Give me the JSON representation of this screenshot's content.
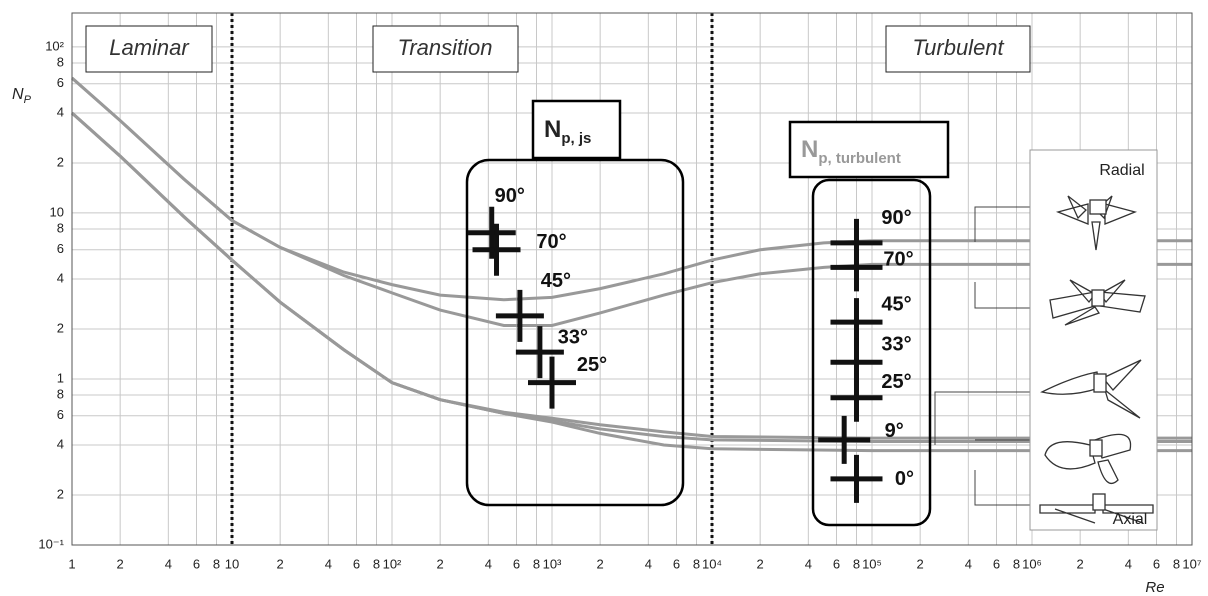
{
  "chart_data": {
    "type": "line",
    "x_label": "Re",
    "y_label": {
      "main": "N",
      "sub": "P"
    },
    "log_x": true,
    "log_y": true,
    "grid": true,
    "xlim": [
      1,
      10000000
    ],
    "ylim": [
      0.1,
      160
    ],
    "xticks": [
      1,
      2,
      4,
      6,
      8,
      10,
      {
        "value": 20,
        "label": "2"
      },
      {
        "value": 40,
        "label": "4"
      },
      {
        "value": 60,
        "label": "6"
      },
      {
        "value": 80,
        "label": "8"
      },
      {
        "value": 100,
        "label": "10²"
      },
      {
        "value": 200,
        "label": "2"
      },
      {
        "value": 400,
        "label": "4"
      },
      {
        "value": 600,
        "label": "6"
      },
      {
        "value": 800,
        "label": "8"
      },
      {
        "value": 1000,
        "label": "10³"
      },
      {
        "value": 2000,
        "label": "2"
      },
      {
        "value": 4000,
        "label": "4"
      },
      {
        "value": 6000,
        "label": "6"
      },
      {
        "value": 8000,
        "label": "8"
      },
      {
        "value": 10000,
        "label": "10⁴"
      },
      {
        "value": 20000,
        "label": "2"
      },
      {
        "value": 40000,
        "label": "4"
      },
      {
        "value": 60000,
        "label": "6"
      },
      {
        "value": 80000,
        "label": "8"
      },
      {
        "value": 100000,
        "label": "10⁵"
      },
      {
        "value": 200000,
        "label": "2"
      },
      {
        "value": 400000,
        "label": "4"
      },
      {
        "value": 600000,
        "label": "6"
      },
      {
        "value": 800000,
        "label": "8"
      },
      {
        "value": 1000000,
        "label": "10⁶"
      },
      {
        "value": 2000000,
        "label": "2"
      },
      {
        "value": 4000000,
        "label": "4"
      },
      {
        "value": 6000000,
        "label": "6"
      },
      {
        "value": 8000000,
        "label": "8"
      },
      {
        "value": 10000000,
        "label": "10⁷"
      }
    ],
    "yticks": [
      {
        "value": 0.1,
        "label": "10⁻¹"
      },
      {
        "value": 0.2,
        "label": "2"
      },
      {
        "value": 0.4,
        "label": "4"
      },
      {
        "value": 0.6,
        "label": "6"
      },
      {
        "value": 0.8,
        "label": "8"
      },
      1,
      2,
      4,
      6,
      8,
      10,
      {
        "value": 20,
        "label": "2"
      },
      {
        "value": 40,
        "label": "4"
      },
      {
        "value": 60,
        "label": "6"
      },
      {
        "value": 80,
        "label": "8"
      },
      {
        "value": 100,
        "label": "10²"
      }
    ],
    "regime_boundaries": [
      10,
      10000
    ],
    "regimes": [
      "Laminar",
      "Transition",
      "Turbulent"
    ],
    "curves": [
      {
        "color": "#999999",
        "x": [
          1,
          2,
          5,
          10,
          20,
          50,
          100,
          200,
          500,
          1000,
          2000,
          5000,
          10000,
          20000,
          50000,
          100000,
          1000000,
          10000000
        ],
        "values": [
          65,
          36,
          16,
          9,
          6.2,
          4.4,
          3.7,
          3.2,
          3.0,
          3.1,
          3.5,
          4.3,
          5.2,
          6.0,
          6.6,
          6.8,
          6.8,
          6.8
        ]
      },
      {
        "color": "#999999",
        "x": [
          1,
          2,
          5,
          10,
          20,
          50,
          100,
          200,
          500,
          1000,
          2000,
          5000,
          10000,
          20000,
          50000,
          100000,
          1000000,
          10000000
        ],
        "values": [
          65,
          36,
          16,
          9,
          6.2,
          4.2,
          3.3,
          2.6,
          2.1,
          2.1,
          2.5,
          3.2,
          3.8,
          4.3,
          4.7,
          4.9,
          4.9,
          4.9
        ]
      },
      {
        "color": "#999999",
        "x": [
          1,
          2,
          5,
          10,
          20,
          50,
          100,
          200,
          500,
          1000,
          2000,
          5000,
          10000,
          100000,
          1000000,
          10000000
        ],
        "values": [
          40,
          22,
          9.5,
          5.2,
          2.9,
          1.5,
          0.95,
          0.75,
          0.62,
          0.55,
          0.47,
          0.4,
          0.38,
          0.37,
          0.37,
          0.37
        ]
      },
      {
        "color": "#999999",
        "x": [
          1,
          2,
          5,
          10,
          20,
          50,
          100,
          200,
          500,
          1000,
          2000,
          5000,
          10000,
          100000,
          1000000,
          10000000
        ],
        "values": [
          40,
          22,
          9.5,
          5.2,
          2.9,
          1.5,
          0.95,
          0.75,
          0.62,
          0.56,
          0.5,
          0.45,
          0.43,
          0.42,
          0.42,
          0.42
        ]
      },
      {
        "color": "#999999",
        "x": [
          1,
          2,
          5,
          10,
          20,
          50,
          100,
          200,
          500,
          1000,
          2000,
          5000,
          10000,
          100000,
          1000000,
          10000000
        ],
        "values": [
          40,
          22,
          9.5,
          5.2,
          2.9,
          1.5,
          0.95,
          0.75,
          0.63,
          0.58,
          0.53,
          0.48,
          0.45,
          0.44,
          0.44,
          0.44
        ]
      }
    ],
    "groups": [
      {
        "title": {
          "main": "N",
          "sub": "p, js"
        },
        "title_color": "#111111",
        "color": "#111111",
        "labels": [
          "90°",
          "70°",
          "45°",
          "33°",
          "25°"
        ],
        "x": [
          420,
          450,
          630,
          840,
          1000
        ],
        "values": [
          7.6,
          6.0,
          2.4,
          1.45,
          0.95
        ]
      },
      {
        "title": {
          "main": "N",
          "sub": "p, turbulent"
        },
        "title_color": "#999999",
        "color": "#111111",
        "labels": [
          "90°",
          "70°",
          "45°",
          "33°",
          "25°",
          "9°",
          "0°"
        ],
        "x": [
          80000,
          80000,
          80000,
          80000,
          80000,
          67000,
          80000
        ],
        "values": [
          6.6,
          4.7,
          2.2,
          1.26,
          0.77,
          0.43,
          0.25
        ]
      }
    ],
    "impeller_labels": [
      "Radial",
      "Axial"
    ]
  }
}
